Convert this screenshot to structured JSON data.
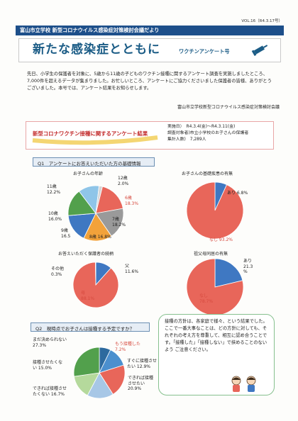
{
  "header": {
    "volume": "VOL.16（R4.3.17号）",
    "publisher": "富山市立学校 新型コロナウイルス感染症対策検討会議だより",
    "title_main": "新たな感染症とともに",
    "title_sub": "ワクチンアンケート号"
  },
  "intro": {
    "text": "先日、小学生の保護者を対象に、5歳から11歳の子どものワクチン接種に関するアンケート調査を実施しましたところ、7,000件を超えるデータが集まりました。お忙しいところ、アンケートにご協力くださいました保護者の皆様、ありがとうございました。本号では、アンケート結果をお知らせします。",
    "organization": "富山市立学校新型コロナウイルス感染症対策検討会議"
  },
  "result_banner": {
    "title": "新型コロナワクチン接種に関するアンケート結果",
    "period": "実施日）　R4.3.4(金)～R4.3.11(金)",
    "target": "調査対象者)市立小学校のお子さんの保護者",
    "count": "集計人数)　7,289人"
  },
  "q1": {
    "heading": "Q1　アンケートにお答えいただいた方の基礎情報"
  },
  "q2": {
    "heading": "Q2　現時点でお子さんは接種する予定ですか？"
  },
  "guidance": {
    "text": "接種の方針は、各家庭で様々、という結果でした。\nここで一番大事なことは、どの方針に対しても、それぞれの考え方を尊重して、相互に認め合うことです。「接種した」「接種しない」で挟めることのないよう\nご注意ください。"
  },
  "chart_data": [
    {
      "type": "pie",
      "title": "お子さんの年齢",
      "categories": [
        "6歳",
        "7歳",
        "8歳",
        "9歳",
        "10歳",
        "11歳",
        "12歳"
      ],
      "values": [
        18.3,
        18.2,
        16.8,
        16.5,
        16.0,
        12.2,
        2.0
      ],
      "labels": [
        "6歳\n18.3%",
        "7歳\n18.2%",
        "8歳 16.8%",
        "9歳\n16.5",
        "10歳\n16.0%",
        "11歳\n12.2%",
        "12歳\n2.0%"
      ],
      "colors": [
        "#e8665a",
        "#9a9a9a",
        "#f2a23a",
        "#3f78c2",
        "#52a04c",
        "#8fc5e8",
        "#d6d6d6"
      ]
    },
    {
      "type": "pie",
      "title": "お子さんの基礎疾患の有無",
      "categories": [
        "あり",
        "なし"
      ],
      "values": [
        6.8,
        93.2
      ],
      "labels": [
        "あり 6.8%",
        "なし 93.2%"
      ],
      "colors": [
        "#3f78c2",
        "#e8665a"
      ]
    },
    {
      "type": "pie",
      "title": "お答えいただく保護者の続柄",
      "categories": [
        "父",
        "母",
        "その他"
      ],
      "values": [
        11.6,
        88.1,
        0.3
      ],
      "labels": [
        "父\n11.6%",
        "母\n88.1%",
        "その他\n0.3%"
      ],
      "colors": [
        "#3f78c2",
        "#e8665a",
        "#d0d0d0"
      ]
    },
    {
      "type": "pie",
      "title": "祖父母同居の有無",
      "categories": [
        "あり",
        "なし"
      ],
      "values": [
        21.3,
        78.7
      ],
      "labels": [
        "あり\n21.3\n%",
        "なし\n78.7%"
      ],
      "colors": [
        "#3f78c2",
        "#e8665a"
      ]
    },
    {
      "type": "pie",
      "title": "",
      "categories": [
        "もう接種した",
        "すぐに接種させたい",
        "できれば接種させたい",
        "できれば接種させたくない",
        "接種させたくない",
        "まだ決められない"
      ],
      "values": [
        7.2,
        12.9,
        20.9,
        16.7,
        15.0,
        27.3
      ],
      "labels": [
        "もう接種した\n7.2%",
        "すぐに接種させ\nたい 12.9%",
        "できれば接種\nさせたい\n20.9%",
        "できれば接種させ\nたくない 16.7%",
        "接種させたくな\nい 15.0%",
        "まだ決められない\n27.3%"
      ],
      "colors": [
        "#2d6a9e",
        "#4b8fce",
        "#e8665a",
        "#a7c7e6",
        "#b5d99c",
        "#52a04c"
      ]
    }
  ]
}
